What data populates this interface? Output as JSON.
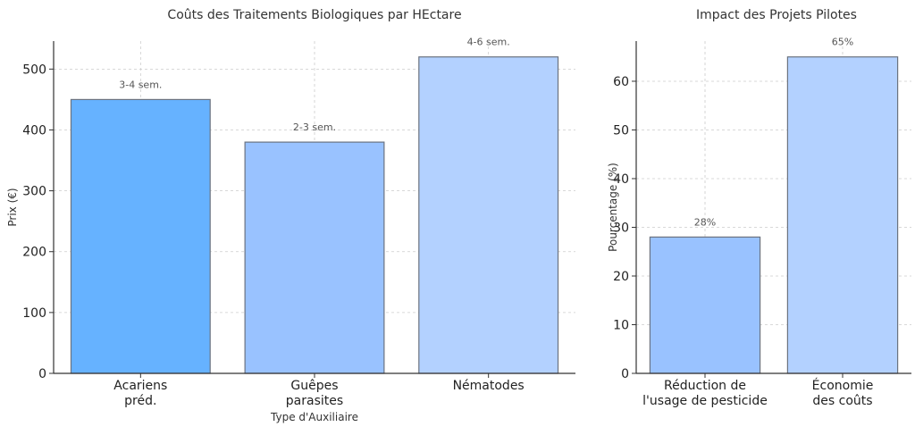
{
  "chart_data": [
    {
      "type": "bar",
      "title": "Coûts des Traitements Biologiques par HEctare",
      "xlabel": "Type d'Auxiliaire",
      "ylabel": "Prix (€)",
      "categories": [
        [
          "Acariens",
          "préd."
        ],
        [
          "Guêpes",
          "parasites"
        ],
        [
          "Nématodes"
        ]
      ],
      "values": [
        450,
        380,
        520
      ],
      "annotations": [
        "3-4 sem.",
        "2-3 sem.",
        "4-6 sem."
      ],
      "colors": [
        "#66b2ff",
        "#99c2ff",
        "#b3d1ff"
      ],
      "ylim": [
        0,
        546
      ],
      "yticks": [
        0,
        100,
        200,
        300,
        400,
        500
      ],
      "grid": true
    },
    {
      "type": "bar",
      "title": "Impact des Projets Pilotes",
      "xlabel": "",
      "ylabel": "Pourcentage (%)",
      "categories": [
        [
          "Réduction de",
          "l'usage de pesticide"
        ],
        [
          "Économie",
          "des coûts"
        ]
      ],
      "values": [
        28,
        65
      ],
      "annotations": [
        "28%",
        "65%"
      ],
      "colors": [
        "#99c2ff",
        "#b3d1ff"
      ],
      "ylim": [
        0,
        68.25
      ],
      "yticks": [
        0,
        10,
        20,
        30,
        40,
        50,
        60
      ],
      "grid": true
    }
  ]
}
